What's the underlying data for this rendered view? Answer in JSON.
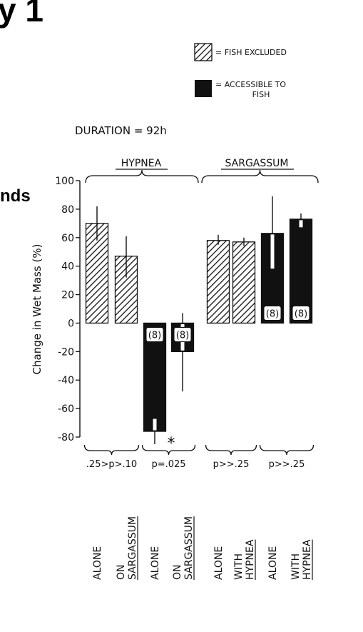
{
  "fragments": {
    "top_left": "y 1",
    "mid_left": "nds"
  },
  "colors": {
    "ink": "#111111",
    "paper": "#ffffff"
  },
  "chart_data": {
    "type": "bar",
    "duration": "DURATION = 92h",
    "legend": [
      {
        "label": "= FISH EXCLUDED",
        "pattern": "hatched"
      },
      {
        "label_line1": "= ACCESSIBLE TO",
        "label_line2": "FISH",
        "pattern": "solid"
      }
    ],
    "groups": [
      "HYPNEA",
      "SARGASSUM"
    ],
    "ylabel": "Change in Wet Mass (%)",
    "ylim": [
      -80,
      100
    ],
    "yticks": [
      "100",
      "80",
      "60",
      "40",
      "20",
      "0",
      "-20",
      "-40",
      "-60",
      "-80"
    ],
    "bars": [
      {
        "group": "HYPNEA",
        "category": [
          "ALONE"
        ],
        "underline": [],
        "treatment": "fish excluded",
        "value": 70,
        "err_low": 58,
        "err_high": 82
      },
      {
        "group": "HYPNEA",
        "category": [
          "ON",
          "SARGASSUM"
        ],
        "underline": [
          "SARGASSUM"
        ],
        "treatment": "fish excluded",
        "value": 47,
        "err_low": 32,
        "err_high": 61
      },
      {
        "group": "HYPNEA",
        "category": [
          "ALONE"
        ],
        "underline": [],
        "treatment": "accessible to fish",
        "value": -76,
        "err_low": -85,
        "err_high": -67,
        "n_label": "(8)"
      },
      {
        "group": "HYPNEA",
        "category": [
          "ON",
          "SARGASSUM"
        ],
        "underline": [
          "SARGASSUM"
        ],
        "treatment": "accessible to fish",
        "value": -20,
        "err_low": -48,
        "err_high": 7,
        "n_label": "(8)"
      },
      {
        "group": "SARGASSUM",
        "category": [
          "ALONE"
        ],
        "underline": [],
        "treatment": "fish excluded",
        "value": 58,
        "err_low": 55,
        "err_high": 62
      },
      {
        "group": "SARGASSUM",
        "category": [
          "WITH",
          "HYPNEA"
        ],
        "underline": [
          "HYPNEA"
        ],
        "treatment": "fish excluded",
        "value": 57,
        "err_low": 54,
        "err_high": 60
      },
      {
        "group": "SARGASSUM",
        "category": [
          "ALONE"
        ],
        "underline": [],
        "treatment": "accessible to fish",
        "value": 63,
        "err_low": 38,
        "err_high": 89,
        "n_label": "(8)"
      },
      {
        "group": "SARGASSUM",
        "category": [
          "WITH",
          "HYPNEA"
        ],
        "underline": [
          "HYPNEA"
        ],
        "treatment": "accessible to fish",
        "value": 73,
        "err_low": 67,
        "err_high": 77,
        "n_label": "(8)"
      }
    ],
    "significance": [
      {
        "pair": [
          0,
          1
        ],
        "label": ".25>p>.10",
        "star": ""
      },
      {
        "pair": [
          2,
          3
        ],
        "label": "p=.025",
        "star": "*"
      },
      {
        "pair": [
          4,
          5
        ],
        "label": "p>>.25",
        "star": ""
      },
      {
        "pair": [
          6,
          7
        ],
        "label": "p>>.25",
        "star": ""
      }
    ]
  }
}
